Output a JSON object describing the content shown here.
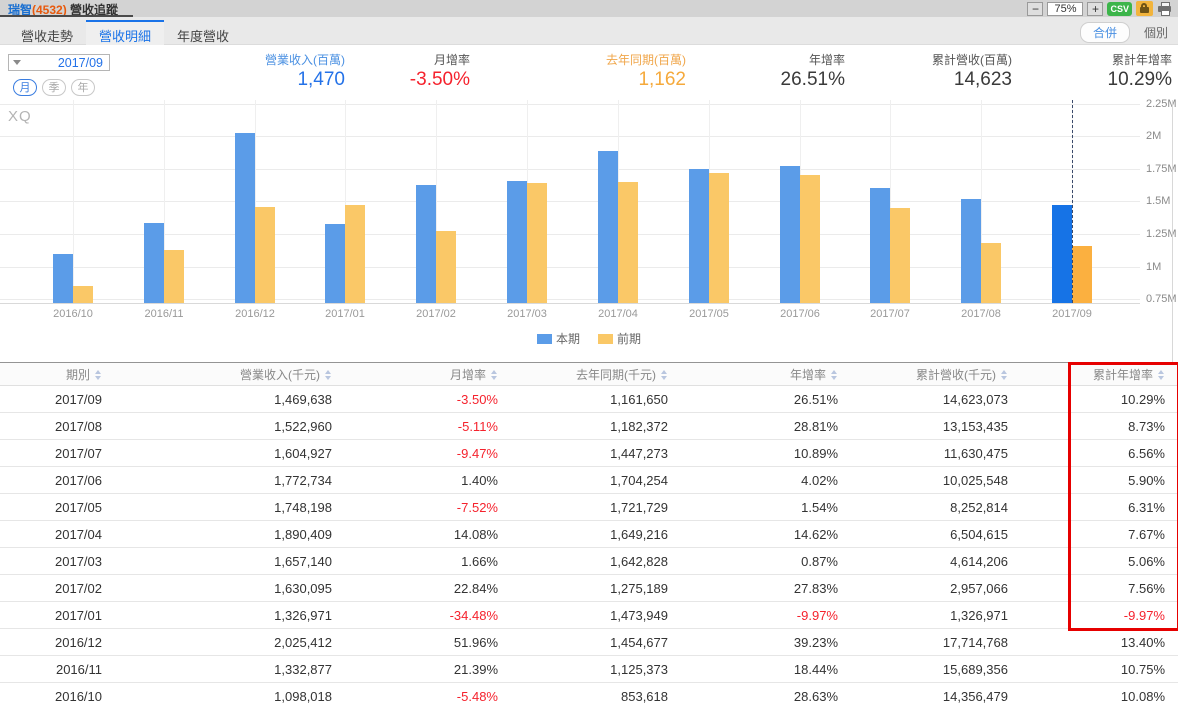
{
  "header": {
    "title": {
      "company": "瑞智",
      "code": "(4532)",
      "suffix": " 營收追蹤"
    },
    "controls": {
      "zoom_out": "−",
      "zoom_level": "75%",
      "zoom_in": "+",
      "csv_label": "CSV",
      "lock_icon": "lock",
      "print_icon": "printer"
    }
  },
  "tabs": [
    {
      "name": "revenue-trend",
      "label": "營收走勢",
      "active": false
    },
    {
      "name": "revenue-detail",
      "label": "營收明細",
      "active": true
    },
    {
      "name": "annual-revenue",
      "label": "年度營收",
      "active": false
    }
  ],
  "view_toggle": {
    "merged": "合併",
    "individual": "個別",
    "selected": "合併"
  },
  "period": {
    "value": "2017/09",
    "modes": [
      "月",
      "季",
      "年"
    ],
    "active_mode": "月"
  },
  "metrics": [
    {
      "name": "revenue",
      "label": "營業收入(百萬)",
      "value": "1,470",
      "color": "blue"
    },
    {
      "name": "mom-growth",
      "label": "月增率",
      "value": "-3.50%",
      "color": "red"
    },
    {
      "name": "last-year-same-period",
      "label": "去年同期(百萬)",
      "value": "1,162",
      "color": "orange"
    },
    {
      "name": "yoy-growth",
      "label": "年增率",
      "value": "26.51%",
      "color": "dark"
    },
    {
      "name": "cumulative-revenue",
      "label": "累計營收(百萬)",
      "value": "14,623",
      "color": "dark"
    },
    {
      "name": "cumulative-yoy-growth",
      "label": "累計年增率",
      "value": "10.29%",
      "color": "dark"
    }
  ],
  "chart_data": {
    "type": "bar",
    "title": "",
    "watermark": "XQ",
    "categories": [
      "2016/10",
      "2016/11",
      "2016/12",
      "2017/01",
      "2017/02",
      "2017/03",
      "2017/04",
      "2017/05",
      "2017/06",
      "2017/07",
      "2017/08",
      "2017/09"
    ],
    "series": [
      {
        "name": "本期",
        "color": "#5b9ce8",
        "highlight_color": "#1673e6",
        "values": [
          1098018,
          1332877,
          2025412,
          1326971,
          1630095,
          1657140,
          1890409,
          1748198,
          1772734,
          1604927,
          1522960,
          1469638
        ]
      },
      {
        "name": "前期",
        "color": "#fac867",
        "highlight_color": "#fbb040",
        "values": [
          853618,
          1125373,
          1454677,
          1473949,
          1275189,
          1642828,
          1649216,
          1721729,
          1704254,
          1447273,
          1182372,
          1161650
        ]
      }
    ],
    "highlight_index": 11,
    "y_ticks": [
      {
        "label": "0.75M",
        "value": 750000
      },
      {
        "label": "1M",
        "value": 1000000
      },
      {
        "label": "1.25M",
        "value": 1250000
      },
      {
        "label": "1.5M",
        "value": 1500000
      },
      {
        "label": "1.75M",
        "value": 1750000
      },
      {
        "label": "2M",
        "value": 2000000
      },
      {
        "label": "2.25M",
        "value": 2250000
      }
    ],
    "ylim": [
      720000,
      2280000
    ],
    "grid": true,
    "legend_position": "bottom"
  },
  "table": {
    "headers": [
      "期別",
      "營業收入(千元)",
      "月增率",
      "去年同期(千元)",
      "年增率",
      "累計營收(千元)",
      "累計年增率"
    ],
    "rows": [
      [
        "2017/09",
        "1,469,638",
        "-3.50%",
        "1,161,650",
        "26.51%",
        "14,623,073",
        "10.29%"
      ],
      [
        "2017/08",
        "1,522,960",
        "-5.11%",
        "1,182,372",
        "28.81%",
        "13,153,435",
        "8.73%"
      ],
      [
        "2017/07",
        "1,604,927",
        "-9.47%",
        "1,447,273",
        "10.89%",
        "11,630,475",
        "6.56%"
      ],
      [
        "2017/06",
        "1,772,734",
        "1.40%",
        "1,704,254",
        "4.02%",
        "10,025,548",
        "5.90%"
      ],
      [
        "2017/05",
        "1,748,198",
        "-7.52%",
        "1,721,729",
        "1.54%",
        "8,252,814",
        "6.31%"
      ],
      [
        "2017/04",
        "1,890,409",
        "14.08%",
        "1,649,216",
        "14.62%",
        "6,504,615",
        "7.67%"
      ],
      [
        "2017/03",
        "1,657,140",
        "1.66%",
        "1,642,828",
        "0.87%",
        "4,614,206",
        "5.06%"
      ],
      [
        "2017/02",
        "1,630,095",
        "22.84%",
        "1,275,189",
        "27.83%",
        "2,957,066",
        "7.56%"
      ],
      [
        "2017/01",
        "1,326,971",
        "-34.48%",
        "1,473,949",
        "-9.97%",
        "1,326,971",
        "-9.97%"
      ],
      [
        "2016/12",
        "2,025,412",
        "51.96%",
        "1,454,677",
        "39.23%",
        "17,714,768",
        "13.40%"
      ],
      [
        "2016/11",
        "1,332,877",
        "21.39%",
        "1,125,373",
        "18.44%",
        "15,689,356",
        "10.75%"
      ],
      [
        "2016/10",
        "1,098,018",
        "-5.48%",
        "853,618",
        "28.63%",
        "14,356,479",
        "10.08%"
      ]
    ],
    "highlight": {
      "column_header": "累計年增率",
      "rows_covered": 9,
      "color": "#e60000"
    }
  },
  "colors": {
    "accent_blue": "#1a73e8",
    "negative_red": "#f5222d",
    "orange": "#f5a93b",
    "bar_current": "#5b9ce8",
    "bar_previous": "#fac867",
    "bar_current_highlight": "#1673e6",
    "bar_previous_highlight": "#fbb040"
  }
}
